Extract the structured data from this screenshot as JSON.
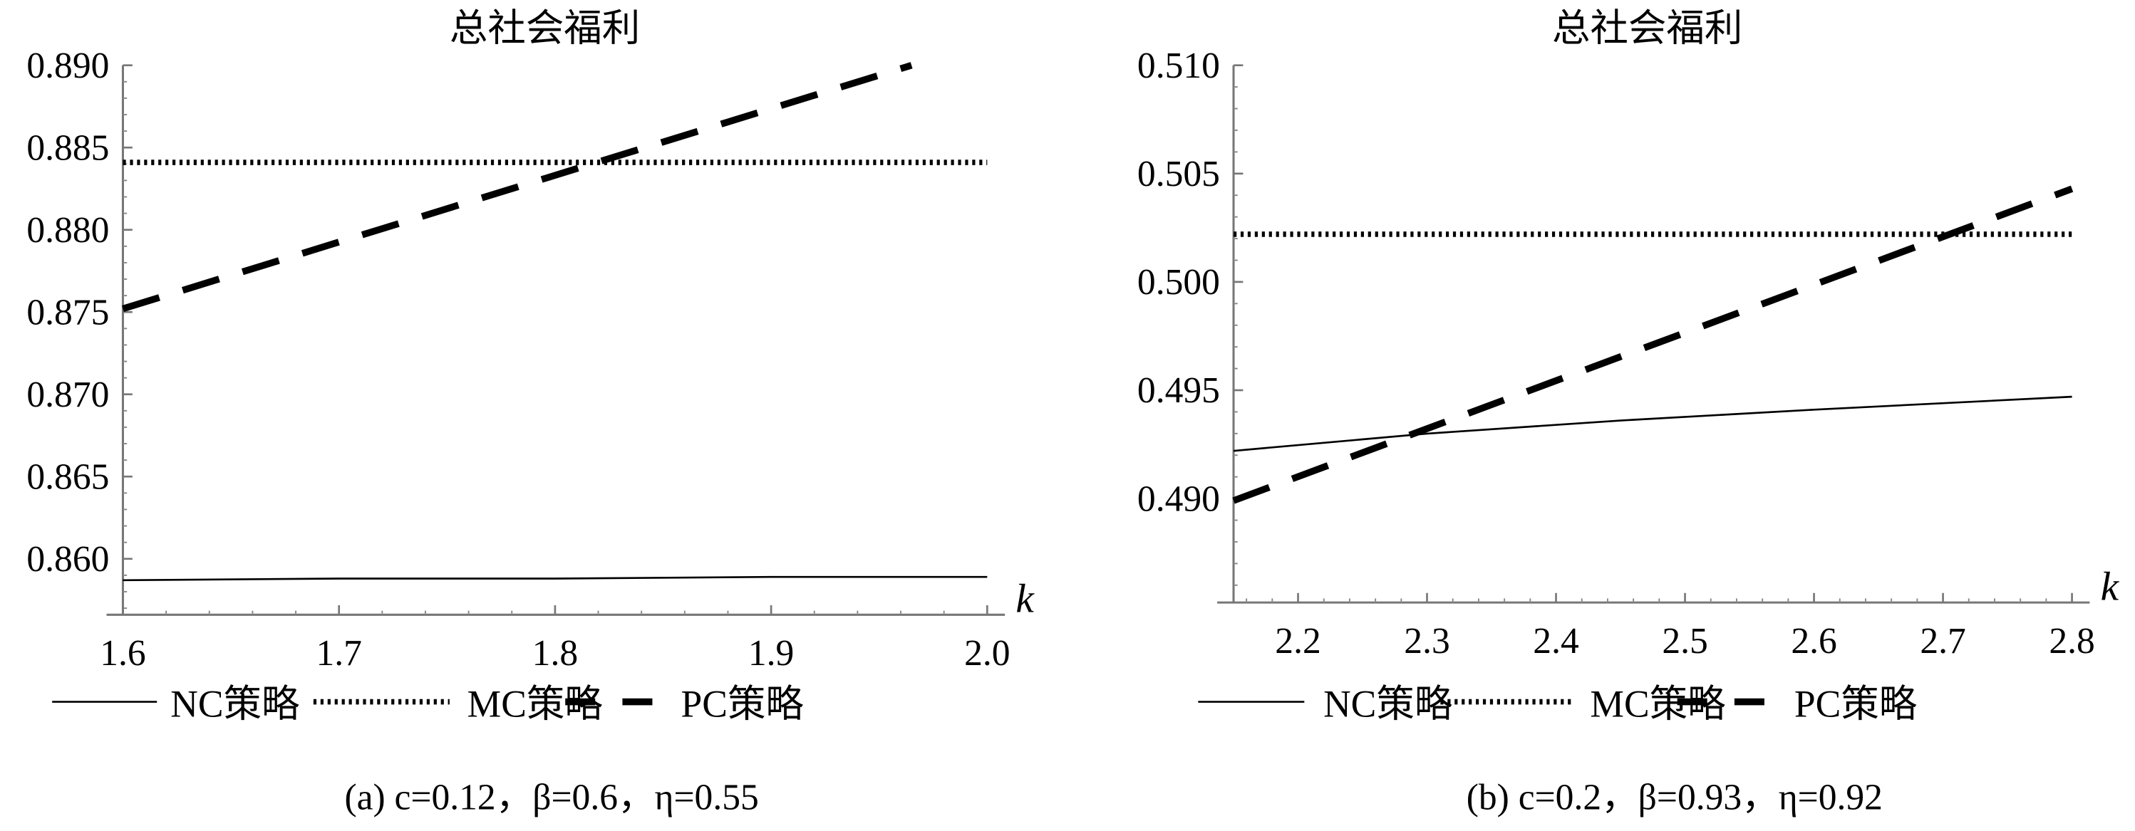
{
  "chart_data": [
    {
      "type": "line",
      "title": "总社会福利",
      "xlabel": "k",
      "ylabel": "",
      "xlim": [
        1.6,
        2.0
      ],
      "ylim": [
        0.8566,
        0.89
      ],
      "x_ticks": [
        "1.6",
        "1.7",
        "1.8",
        "1.9",
        "2.0"
      ],
      "x_tick_values": [
        1.6,
        1.7,
        1.8,
        1.9,
        2.0
      ],
      "y_ticks": [
        "0.860",
        "0.865",
        "0.870",
        "0.875",
        "0.880",
        "0.885",
        "0.890"
      ],
      "y_tick_values": [
        0.86,
        0.865,
        0.87,
        0.875,
        0.88,
        0.885,
        0.89
      ],
      "series": [
        {
          "name": "NC策略",
          "style": "solid",
          "x": [
            1.6,
            1.7,
            1.8,
            1.9,
            2.0
          ],
          "values": [
            0.8587,
            0.8588,
            0.8588,
            0.8589,
            0.8589
          ]
        },
        {
          "name": "MC策略",
          "style": "dotted",
          "x": [
            1.6,
            2.0
          ],
          "values": [
            0.8841,
            0.8841
          ]
        },
        {
          "name": "PC策略",
          "style": "dashed",
          "x": [
            1.6,
            1.965
          ],
          "values": [
            0.8752,
            0.89
          ]
        }
      ],
      "legend": [
        "NC策略",
        "MC策略",
        "PC策略"
      ],
      "legend_position": "bottom",
      "caption": "(a)  c=0.12，β=0.6，η=0.55",
      "grid": false
    },
    {
      "type": "line",
      "title": "总社会福利",
      "xlabel": "k",
      "ylabel": "",
      "xlim": [
        2.15,
        2.8
      ],
      "ylim": [
        0.4852,
        0.51
      ],
      "x_ticks": [
        "2.2",
        "2.3",
        "2.4",
        "2.5",
        "2.6",
        "2.7",
        "2.8"
      ],
      "x_tick_values": [
        2.2,
        2.3,
        2.4,
        2.5,
        2.6,
        2.7,
        2.8
      ],
      "y_ticks": [
        "0.490",
        "0.495",
        "0.500",
        "0.505",
        "0.510"
      ],
      "y_tick_values": [
        0.49,
        0.495,
        0.5,
        0.505,
        0.51
      ],
      "series": [
        {
          "name": "NC策略",
          "style": "solid",
          "x": [
            2.15,
            2.3,
            2.45,
            2.6,
            2.8
          ],
          "values": [
            0.4922,
            0.493,
            0.4936,
            0.4941,
            0.4947
          ]
        },
        {
          "name": "MC策略",
          "style": "dotted",
          "x": [
            2.15,
            2.8
          ],
          "values": [
            0.5022,
            0.5022
          ]
        },
        {
          "name": "PC策略",
          "style": "dashed",
          "x": [
            2.15,
            2.8
          ],
          "values": [
            0.4899,
            0.5043
          ]
        }
      ],
      "legend": [
        "NC策略",
        "MC策略",
        "PC策略"
      ],
      "legend_position": "bottom",
      "caption": "(b)  c=0.2，β=0.93，η=0.92",
      "grid": false
    }
  ]
}
